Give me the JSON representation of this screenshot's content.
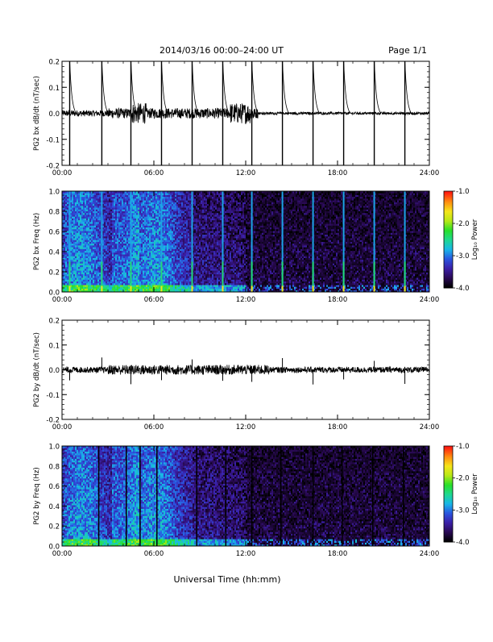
{
  "header": {
    "title": "2014/03/16  00:00–24:00 UT",
    "page": "Page 1/1"
  },
  "footer": {
    "xlabel": "Universal Time (hh:mm)"
  },
  "colorbar_label": "Log₁₀ Power",
  "colorbar_ticks": [
    "-1.0",
    "-2.0",
    "-3.0",
    "-4.0"
  ],
  "colors": {
    "spectrogram_scale": [
      "#000000",
      "#2a0a55",
      "#3b1fa8",
      "#2a55e0",
      "#19b7e8",
      "#1fd890",
      "#28e028",
      "#b8e816",
      "#f5e51a",
      "#ff8c10",
      "#ff1a10"
    ]
  },
  "chart_data": [
    {
      "type": "line",
      "ylabel": "PG2 bx dB/dt (nT/sec)",
      "ylim": [
        -0.2,
        0.2
      ],
      "yticks": [
        "0.2",
        "0.1",
        "0.0",
        "-0.1",
        "-0.2"
      ],
      "xticks": [
        "00:00",
        "06:00",
        "12:00",
        "18:00",
        "24:00"
      ],
      "xlim_hours": [
        0,
        24
      ],
      "series": [
        {
          "name": "",
          "baseline": 0.0,
          "spike_times_hours": [
            0.5,
            2.6,
            4.5,
            6.5,
            8.5,
            10.5,
            12.4,
            14.4,
            16.4,
            18.4,
            20.4,
            22.4
          ],
          "spike_amplitude": 0.2
        }
      ]
    },
    {
      "type": "heatmap",
      "ylabel": "PG2 bx Freq (Hz)",
      "ylim": [
        0.0,
        1.0
      ],
      "yticks": [
        "1.0",
        "0.8",
        "0.6",
        "0.4",
        "0.2",
        "0.0"
      ],
      "xticks": [
        "00:00",
        "06:00",
        "12:00",
        "18:00",
        "24:00"
      ],
      "xlim_hours": [
        0,
        24
      ],
      "zlim": [
        -4.0,
        -1.0
      ],
      "spike_times_hours": [
        0.5,
        2.6,
        4.5,
        6.5,
        8.5,
        10.5,
        12.4,
        14.4,
        16.4,
        18.4,
        20.4,
        22.4
      ]
    },
    {
      "type": "line",
      "ylabel": "PG2 by dB/dt (nT/sec)",
      "ylim": [
        -0.2,
        0.2
      ],
      "yticks": [
        "0.2",
        "0.1",
        "0.0",
        "-0.1",
        "-0.2"
      ],
      "xticks": [
        "00:00",
        "06:00",
        "12:00",
        "18:00",
        "24:00"
      ],
      "xlim_hours": [
        0,
        24
      ],
      "series": [
        {
          "name": "",
          "baseline": 0.0,
          "spike_times_hours": [
            0.5,
            2.6,
            4.5,
            6.5,
            8.5,
            10.5,
            12.4,
            14.4,
            16.4,
            18.4,
            20.4,
            22.4
          ],
          "spike_amplitude": 0.06
        }
      ]
    },
    {
      "type": "heatmap",
      "ylabel": "PG2 by Freq (Hz)",
      "ylim": [
        0.0,
        1.0
      ],
      "yticks": [
        "1.0",
        "0.8",
        "0.6",
        "0.4",
        "0.2",
        "0.0"
      ],
      "xticks": [
        "00:00",
        "06:00",
        "12:00",
        "18:00",
        "24:00"
      ],
      "xlim_hours": [
        0,
        24
      ],
      "zlim": [
        -4.0,
        -1.0
      ],
      "spike_times_hours": [
        2.4,
        4.2,
        5.1,
        6.2,
        8.8,
        10.7,
        12.4,
        14.3,
        16.4,
        18.3,
        20.3,
        22.3
      ]
    }
  ]
}
